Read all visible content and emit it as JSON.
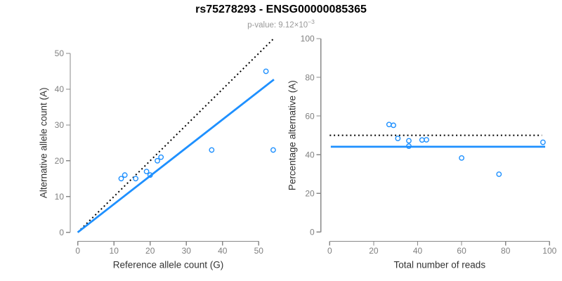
{
  "header": {
    "title": "rs75278293 - ENSG00000085365",
    "subtitle_prefix": "p-value: 9.12×10",
    "subtitle_exponent": "−3"
  },
  "colors": {
    "accent_blue": "#1E90FF",
    "dotted_black": "#000000",
    "axis_gray": "#888888",
    "tick_label_gray": "#808080",
    "axis_title_color": "#333333",
    "title_color": "#000000",
    "subtitle_color": "#999999"
  },
  "chart_data": [
    {
      "type": "scatter",
      "name": "allele-counts-scatter",
      "xlabel": "Reference allele count (G)",
      "ylabel": "Alternative allele count (A)",
      "xticks": [
        0,
        10,
        20,
        30,
        40,
        50
      ],
      "yticks": [
        0,
        10,
        20,
        30,
        40,
        50
      ],
      "xlim": [
        0,
        54.5
      ],
      "ylim": [
        0,
        54.5
      ],
      "grid": false,
      "legend": "none",
      "points": {
        "x": [
          12,
          13,
          16,
          19,
          20,
          22,
          23,
          37,
          52,
          54
        ],
        "y": [
          15,
          16,
          15,
          17,
          16,
          20,
          21,
          23,
          45,
          23
        ]
      },
      "lines": [
        {
          "name": "identity-line",
          "style": "dotted",
          "color": "#000000",
          "x1": 0,
          "y1": 0,
          "x2": 54.4,
          "y2": 54.4,
          "slope": 1
        },
        {
          "name": "regression-line",
          "style": "solid",
          "color": "#1E90FF",
          "x1": 0,
          "y1": 0,
          "x2": 54.2,
          "y2": 42.7,
          "slope": 0.787
        }
      ]
    },
    {
      "type": "scatter",
      "name": "percentage-vs-reads-scatter",
      "xlabel": "Total number of reads",
      "ylabel": "Percentage alternative (A)",
      "xticks": [
        0,
        20,
        40,
        60,
        80,
        100
      ],
      "yticks": [
        0,
        20,
        40,
        60,
        80,
        100
      ],
      "xlim": [
        0,
        100
      ],
      "ylim": [
        0,
        100
      ],
      "grid": false,
      "legend": "none",
      "points": {
        "x": [
          27,
          29,
          31,
          36,
          36,
          42,
          44,
          60,
          97,
          77
        ],
        "y": [
          55.6,
          55.2,
          48.4,
          47.2,
          44.4,
          47.6,
          47.7,
          38.3,
          46.4,
          29.9
        ]
      },
      "lines": [
        {
          "name": "null-50pct-line",
          "style": "dotted",
          "color": "#000000",
          "x1": 0,
          "y1": 50,
          "x2": 96.5,
          "y2": 50
        },
        {
          "name": "mean-percentage-line",
          "style": "solid",
          "color": "#1E90FF",
          "x1": 0.5,
          "y1": 44.1,
          "x2": 98,
          "y2": 44.1
        }
      ]
    }
  ]
}
